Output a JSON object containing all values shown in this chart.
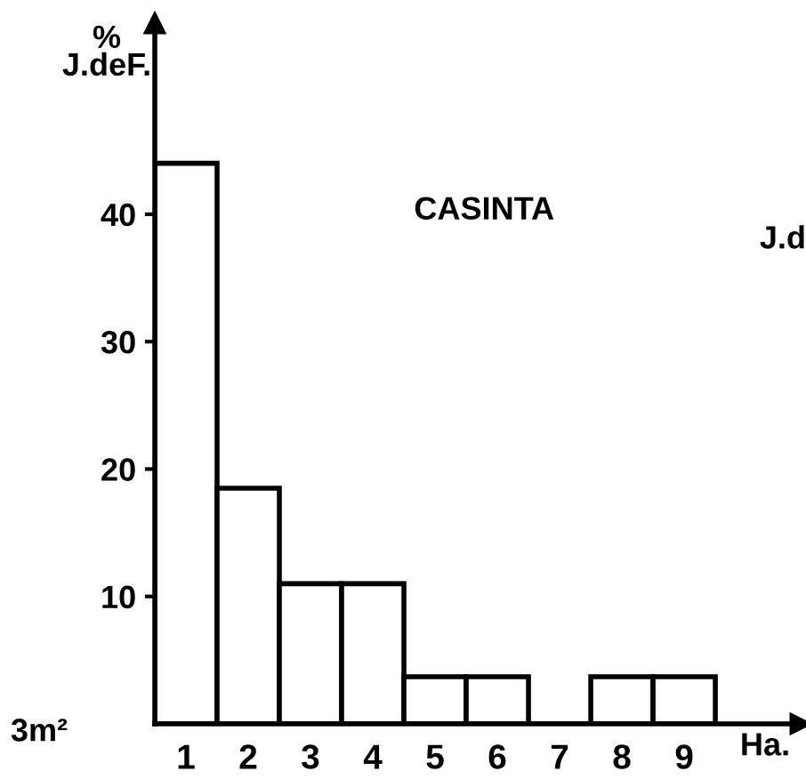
{
  "chart_data": {
    "type": "bar",
    "title": "CASINTA",
    "ylabel": "%\nJ.deF.",
    "xlabel": "Ha.",
    "categories": [
      "1",
      "2",
      "3",
      "4",
      "5",
      "6",
      "7",
      "8",
      "9"
    ],
    "values": [
      44,
      18.5,
      11,
      11,
      3.7,
      3.7,
      0,
      3.7,
      3.7
    ],
    "color": "#ffffff",
    "ylim": [
      0,
      55
    ],
    "yticks": [
      10,
      20,
      30,
      40
    ],
    "grid": false,
    "legend": false,
    "annotations": [
      "3m²",
      "J.d"
    ]
  }
}
